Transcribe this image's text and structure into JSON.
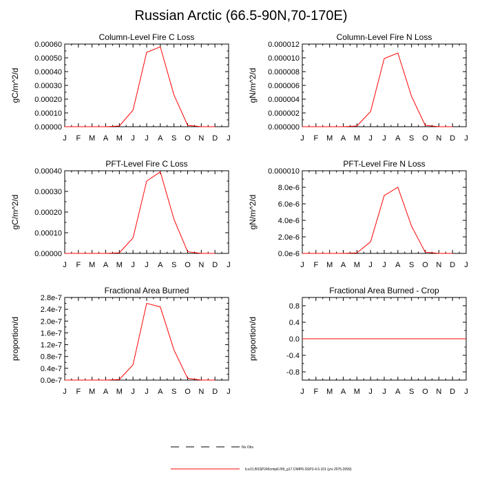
{
  "title": "Russian Arctic (66.5-90N,70-170E)",
  "months": [
    "J",
    "F",
    "M",
    "A",
    "M",
    "J",
    "J",
    "A",
    "S",
    "O",
    "N",
    "D",
    "J"
  ],
  "legend": {
    "obs_label": "No Obs",
    "model_label": "b.e21.BSSP245cmip6.f09_g17.CMIP6-SSP2-4.5.101 (yrs 2075-2099)",
    "model_color": "#ff0000",
    "obs_color": "#000000"
  },
  "chart_data": [
    {
      "type": "line",
      "title": "Column-Level Fire C Loss",
      "ylabel": "gC/m^2/d",
      "ylim": [
        0,
        0.0006
      ],
      "yticks": [
        0,
        0.0001,
        0.0002,
        0.0003,
        0.0004,
        0.0005,
        0.0006
      ],
      "ytick_labels": [
        "0.00000",
        "0.00010",
        "0.00020",
        "0.00030",
        "0.00040",
        "0.00050",
        "0.00060"
      ],
      "series": [
        {
          "name": "b.e21.BSSP245cmip6.f09_g17.CMIP6-SSP2-4.5.101 (yrs 2075-2099)",
          "values": [
            0,
            0,
            0,
            0,
            5e-06,
            0.00012,
            0.00054,
            0.00058,
            0.00023,
            1e-05,
            0,
            0
          ]
        }
      ]
    },
    {
      "type": "line",
      "title": "Column-Level Fire N Loss",
      "ylabel": "gN/m^2/d",
      "ylim": [
        0,
        1.2e-05
      ],
      "yticks": [
        0,
        2e-06,
        4e-06,
        6e-06,
        8e-06,
        1e-05,
        1.2e-05
      ],
      "ytick_labels": [
        "0.000000",
        "0.000002",
        "0.000004",
        "0.000006",
        "0.000008",
        "0.000010",
        "0.000012"
      ],
      "series": [
        {
          "name": "b.e21.BSSP245cmip6.f09_g17.CMIP6-SSP2-4.5.101 (yrs 2075-2099)",
          "values": [
            0,
            0,
            0,
            0,
            1e-07,
            2.2e-06,
            9.9e-06,
            1.07e-05,
            4.4e-06,
            2e-07,
            0,
            0
          ]
        }
      ]
    },
    {
      "type": "line",
      "title": "PFT-Level Fire C Loss",
      "ylabel": "gC/m^2/d",
      "ylim": [
        0,
        0.0004
      ],
      "yticks": [
        0,
        0.0001,
        0.0002,
        0.0003,
        0.0004
      ],
      "ytick_labels": [
        "0.00000",
        "0.00010",
        "0.00020",
        "0.00030",
        "0.00040"
      ],
      "series": [
        {
          "name": "b.e21.BSSP245cmip6.f09_g17.CMIP6-SSP2-4.5.101 (yrs 2075-2099)",
          "values": [
            0,
            0,
            0,
            0,
            3e-06,
            7.5e-05,
            0.00035,
            0.000395,
            0.000165,
            8e-06,
            0,
            0
          ]
        }
      ]
    },
    {
      "type": "line",
      "title": "PFT-Level Fire N Loss",
      "ylabel": "gN/m^2/d",
      "ylim": [
        0,
        1e-05
      ],
      "yticks": [
        0,
        2e-06,
        4e-06,
        6e-06,
        8e-06,
        1e-05
      ],
      "ytick_labels": [
        "0.0e-6",
        "2.0e-6",
        "4.0e-6",
        "6.0e-6",
        "8.0e-6",
        "0.000010"
      ],
      "series": [
        {
          "name": "b.e21.BSSP245cmip6.f09_g17.CMIP6-SSP2-4.5.101 (yrs 2075-2099)",
          "values": [
            0,
            0,
            0,
            0,
            6e-08,
            1.4e-06,
            7e-06,
            8e-06,
            3.3e-06,
            1.5e-07,
            0,
            0
          ]
        }
      ]
    },
    {
      "type": "line",
      "title": "Fractional Area Burned",
      "ylabel": "proportion/d",
      "ylim": [
        0,
        2.8e-07
      ],
      "yticks": [
        0,
        4e-08,
        8e-08,
        1.2e-07,
        1.6e-07,
        2e-07,
        2.4e-07,
        2.8e-07
      ],
      "ytick_labels": [
        "0.0e-7",
        "0.4e-7",
        "0.8e-7",
        "1.2e-7",
        "1.6e-7",
        "2.0e-7",
        "2.4e-7",
        "2.8e-7"
      ],
      "series": [
        {
          "name": "b.e21.BSSP245cmip6.f09_g17.CMIP6-SSP2-4.5.101 (yrs 2075-2099)",
          "values": [
            0,
            0,
            0,
            0,
            2e-09,
            5.2e-08,
            2.6e-07,
            2.48e-07,
            1.02e-07,
            6e-09,
            0,
            0
          ]
        }
      ]
    },
    {
      "type": "line",
      "title": "Fractional Area Burned - Crop",
      "ylabel": "proportion/d",
      "ylim": [
        -1,
        1
      ],
      "yticks": [
        -0.8,
        -0.4,
        0,
        0.4,
        0.8
      ],
      "ytick_labels": [
        "-0.8",
        "-0.4",
        "0.0",
        "0.4",
        "0.8"
      ],
      "series": [
        {
          "name": "b.e21.BSSP245cmip6.f09_g17.CMIP6-SSP2-4.5.101 (yrs 2075-2099)",
          "values": [
            0,
            0,
            0,
            0,
            0,
            0,
            0,
            0,
            0,
            0,
            0,
            0,
            0
          ]
        }
      ]
    }
  ]
}
